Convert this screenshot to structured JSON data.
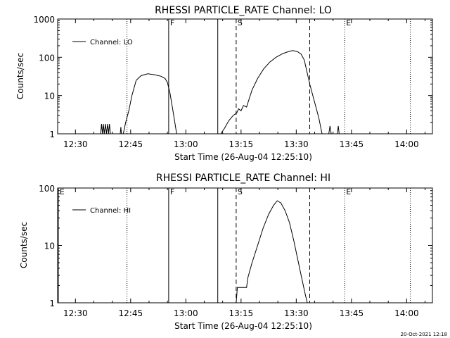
{
  "chart_data": [
    {
      "type": "line",
      "title": "RHESSI PARTICLE_RATE Channel: LO",
      "xlabel": "Start Time (26-Aug-04 12:25:10)",
      "ylabel": "Counts/sec",
      "yscale": "log",
      "xlim": [
        "12:25:10",
        "14:07:00"
      ],
      "ylim": [
        1,
        1000
      ],
      "xticks": [
        "12:30",
        "12:45",
        "13:00",
        "13:15",
        "13:30",
        "13:45",
        "14:00"
      ],
      "yticks": [
        "1",
        "10",
        "100",
        "1000"
      ],
      "legend_position": "top-left",
      "series": [
        {
          "name": "Channel: LO",
          "color": "#000000",
          "segments": [
            [
              [
                "12:36:50",
                1
              ],
              [
                "12:37:05",
                1.8
              ],
              [
                "12:37:20",
                1
              ],
              [
                "12:37:35",
                1.8
              ],
              [
                "12:37:50",
                1
              ],
              [
                "12:38:10",
                1.8
              ],
              [
                "12:38:25",
                1
              ],
              [
                "12:38:45",
                1.8
              ],
              [
                "12:39:00",
                1
              ],
              [
                "12:39:15",
                1.8
              ],
              [
                "12:39:30",
                1
              ]
            ],
            [
              [
                "12:42:10",
                1
              ],
              [
                "12:42:20",
                1.5
              ],
              [
                "12:42:30",
                1
              ]
            ],
            [
              [
                "12:43:00",
                1
              ],
              [
                "12:43:40",
                2
              ],
              [
                "12:44:30",
                4
              ],
              [
                "12:45:20",
                10
              ],
              [
                "12:46:30",
                25
              ],
              [
                "12:47:50",
                33
              ],
              [
                "12:49:40",
                37
              ],
              [
                "12:51:30",
                35
              ],
              [
                "12:53:10",
                32
              ],
              [
                "12:54:20",
                28
              ],
              [
                "12:55:00",
                22
              ],
              [
                "12:55:40",
                12
              ],
              [
                "12:56:20",
                5
              ],
              [
                "12:57:00",
                2
              ],
              [
                "12:57:30",
                1
              ]
            ],
            [
              [
                "13:09:30",
                1
              ],
              [
                "13:10:30",
                1.4
              ],
              [
                "13:11:40",
                2.2
              ],
              [
                "13:12:50",
                3
              ],
              [
                "13:13:50",
                3.5
              ],
              [
                "13:14:20",
                4.5
              ],
              [
                "13:15:00",
                4
              ],
              [
                "13:15:40",
                5.5
              ],
              [
                "13:16:30",
                5
              ],
              [
                "13:17:10",
                8
              ],
              [
                "13:18:00",
                14
              ],
              [
                "13:19:30",
                28
              ],
              [
                "13:21:10",
                50
              ],
              [
                "13:22:50",
                75
              ],
              [
                "13:24:30",
                100
              ],
              [
                "13:26:20",
                125
              ],
              [
                "13:27:50",
                140
              ],
              [
                "13:29:00",
                150
              ],
              [
                "13:30:20",
                140
              ],
              [
                "13:31:20",
                120
              ],
              [
                "13:32:10",
                85
              ],
              [
                "13:32:50",
                45
              ],
              [
                "13:33:40",
                20
              ],
              [
                "13:34:30",
                10
              ],
              [
                "13:35:20",
                5
              ],
              [
                "13:36:10",
                2.5
              ],
              [
                "13:37:00",
                1
              ]
            ],
            [
              [
                "13:38:50",
                1
              ],
              [
                "13:39:10",
                1.6
              ],
              [
                "13:39:30",
                1
              ]
            ],
            [
              [
                "13:41:10",
                1
              ],
              [
                "13:41:25",
                1.6
              ],
              [
                "13:41:40",
                1
              ]
            ]
          ]
        }
      ],
      "vlines": [
        {
          "time": "12:44:00",
          "style": "dotted",
          "label": ""
        },
        {
          "time": "12:55:20",
          "style": "solid",
          "label": "F"
        },
        {
          "time": "13:08:40",
          "style": "solid",
          "label": ""
        },
        {
          "time": "13:13:40",
          "style": "dashed",
          "label": "S"
        },
        {
          "time": "13:33:40",
          "style": "dashed",
          "label": ""
        },
        {
          "time": "13:43:10",
          "style": "dotted",
          "label": "E"
        },
        {
          "time": "14:01:00",
          "style": "dotted",
          "label": ""
        }
      ]
    },
    {
      "type": "line",
      "title": "RHESSI PARTICLE_RATE Channel: HI",
      "xlabel": "Start Time (26-Aug-04 12:25:10)",
      "ylabel": "Counts/sec",
      "yscale": "log",
      "xlim": [
        "12:25:10",
        "14:07:00"
      ],
      "ylim": [
        1,
        100
      ],
      "xticks": [
        "12:30",
        "12:45",
        "13:00",
        "13:15",
        "13:30",
        "13:45",
        "14:00"
      ],
      "yticks": [
        "1",
        "10",
        "100"
      ],
      "legend_position": "top-left",
      "series": [
        {
          "name": "Channel: HI",
          "color": "#000000",
          "segments": [
            [
              [
                "13:13:40",
                1
              ],
              [
                "13:14:00",
                1.85
              ],
              [
                "13:16:30",
                1.85
              ],
              [
                "13:16:50",
                2.7
              ],
              [
                "13:18:00",
                5
              ],
              [
                "13:19:30",
                10
              ],
              [
                "13:21:00",
                20
              ],
              [
                "13:22:30",
                35
              ],
              [
                "13:23:50",
                50
              ],
              [
                "13:24:50",
                60
              ],
              [
                "13:25:50",
                55
              ],
              [
                "13:27:00",
                40
              ],
              [
                "13:28:10",
                25
              ],
              [
                "13:29:20",
                12
              ],
              [
                "13:30:20",
                6
              ],
              [
                "13:31:20",
                3
              ],
              [
                "13:32:20",
                1.5
              ],
              [
                "13:33:00",
                1
              ]
            ]
          ]
        }
      ],
      "vlines": [
        {
          "time": "12:25:20",
          "style": "solid",
          "label": "E"
        },
        {
          "time": "12:44:00",
          "style": "dotted",
          "label": ""
        },
        {
          "time": "12:55:20",
          "style": "solid",
          "label": "F"
        },
        {
          "time": "13:08:40",
          "style": "solid",
          "label": ""
        },
        {
          "time": "13:13:40",
          "style": "dashed",
          "label": "S"
        },
        {
          "time": "13:33:40",
          "style": "dashed",
          "label": ""
        },
        {
          "time": "13:43:10",
          "style": "dotted",
          "label": "E"
        },
        {
          "time": "14:01:00",
          "style": "dotted",
          "label": ""
        }
      ]
    }
  ],
  "timestamp": "20-Oct-2021 12:18"
}
